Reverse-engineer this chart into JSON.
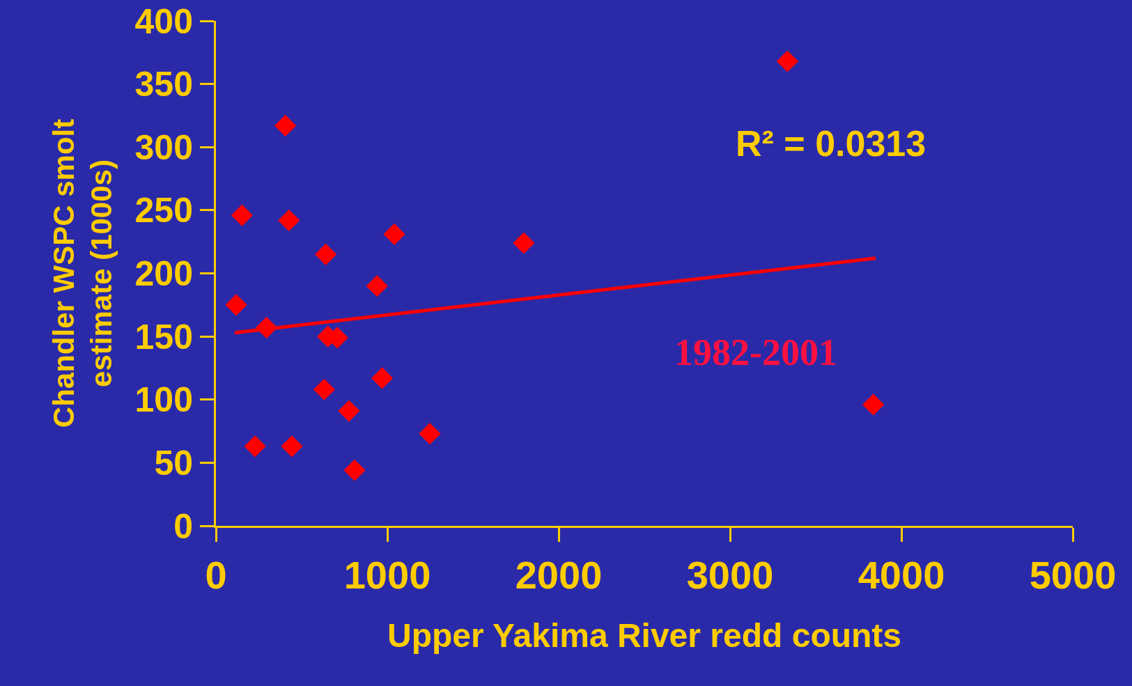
{
  "chart_data": {
    "type": "scatter",
    "xlabel": "Upper Yakima River redd counts",
    "ylabel": "Chandler WSPC smolt\nestimate (1000s)",
    "xlim": [
      0,
      5000
    ],
    "xticks": [
      0,
      1000,
      2000,
      3000,
      4000,
      5000
    ],
    "ylim": [
      0,
      400
    ],
    "yticks": [
      0,
      50,
      100,
      150,
      200,
      250,
      300,
      350,
      400
    ],
    "grid": false,
    "annotations": [
      "R² = 0.0313",
      "1982-2001"
    ],
    "series": [
      {
        "marker": "diamond",
        "color": "#ff0000",
        "x": [
          118,
          152,
          228,
          295,
          405,
          426,
          443,
          632,
          641,
          653,
          708,
          776,
          809,
          940,
          970,
          1041,
          1248,
          1796,
          3335,
          3836
        ],
        "values": [
          175,
          246,
          63,
          157,
          317,
          242,
          63,
          108,
          215,
          150,
          149,
          91,
          44,
          190,
          117,
          231,
          73,
          224,
          368,
          96
        ]
      },
      {
        "type": "line",
        "marker": "none",
        "color": "#ff0000",
        "x": [
          110,
          3849
        ],
        "values": [
          153,
          212
        ]
      }
    ]
  }
}
